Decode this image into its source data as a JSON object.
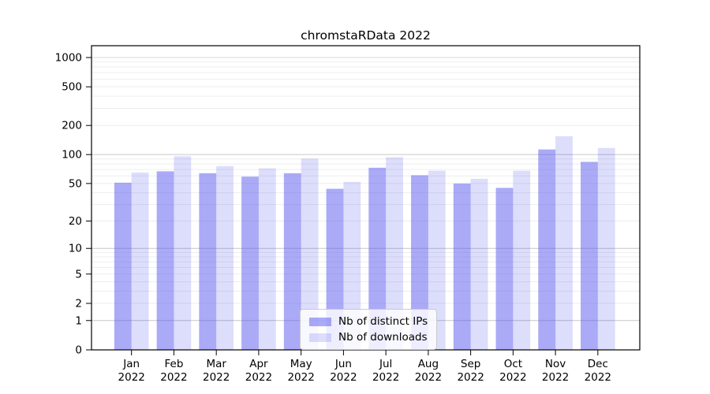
{
  "chart_data": {
    "type": "bar",
    "title": "chromstaRData 2022",
    "categories": [
      "Jan",
      "Feb",
      "Mar",
      "Apr",
      "May",
      "Jun",
      "Jul",
      "Aug",
      "Sep",
      "Oct",
      "Nov",
      "Dec"
    ],
    "x_year": "2022",
    "series": [
      {
        "name": "Nb of distinct IPs",
        "color": "#5555F0",
        "opacity": 0.5,
        "values": [
          51,
          67,
          64,
          59,
          64,
          44,
          73,
          61,
          50,
          45,
          113,
          84
        ]
      },
      {
        "name": "Nb of downloads",
        "color": "#5555F0",
        "opacity": 0.2,
        "values": [
          65,
          96,
          76,
          72,
          91,
          52,
          94,
          68,
          56,
          68,
          155,
          117
        ]
      }
    ],
    "y_ticks": [
      0,
      1,
      2,
      5,
      10,
      20,
      50,
      100,
      200,
      500,
      1000
    ],
    "y_scale": "log1p",
    "ylim": [
      0,
      1000
    ],
    "xlabel": "",
    "ylabel": "",
    "grid": true,
    "legend_position": "bottom-center",
    "colors": {
      "grid_major": "#c6c6c6",
      "grid_minor": "#ededed",
      "grid_top": "#d9d9d9",
      "axis": "#000000",
      "background": "#ffffff"
    }
  }
}
